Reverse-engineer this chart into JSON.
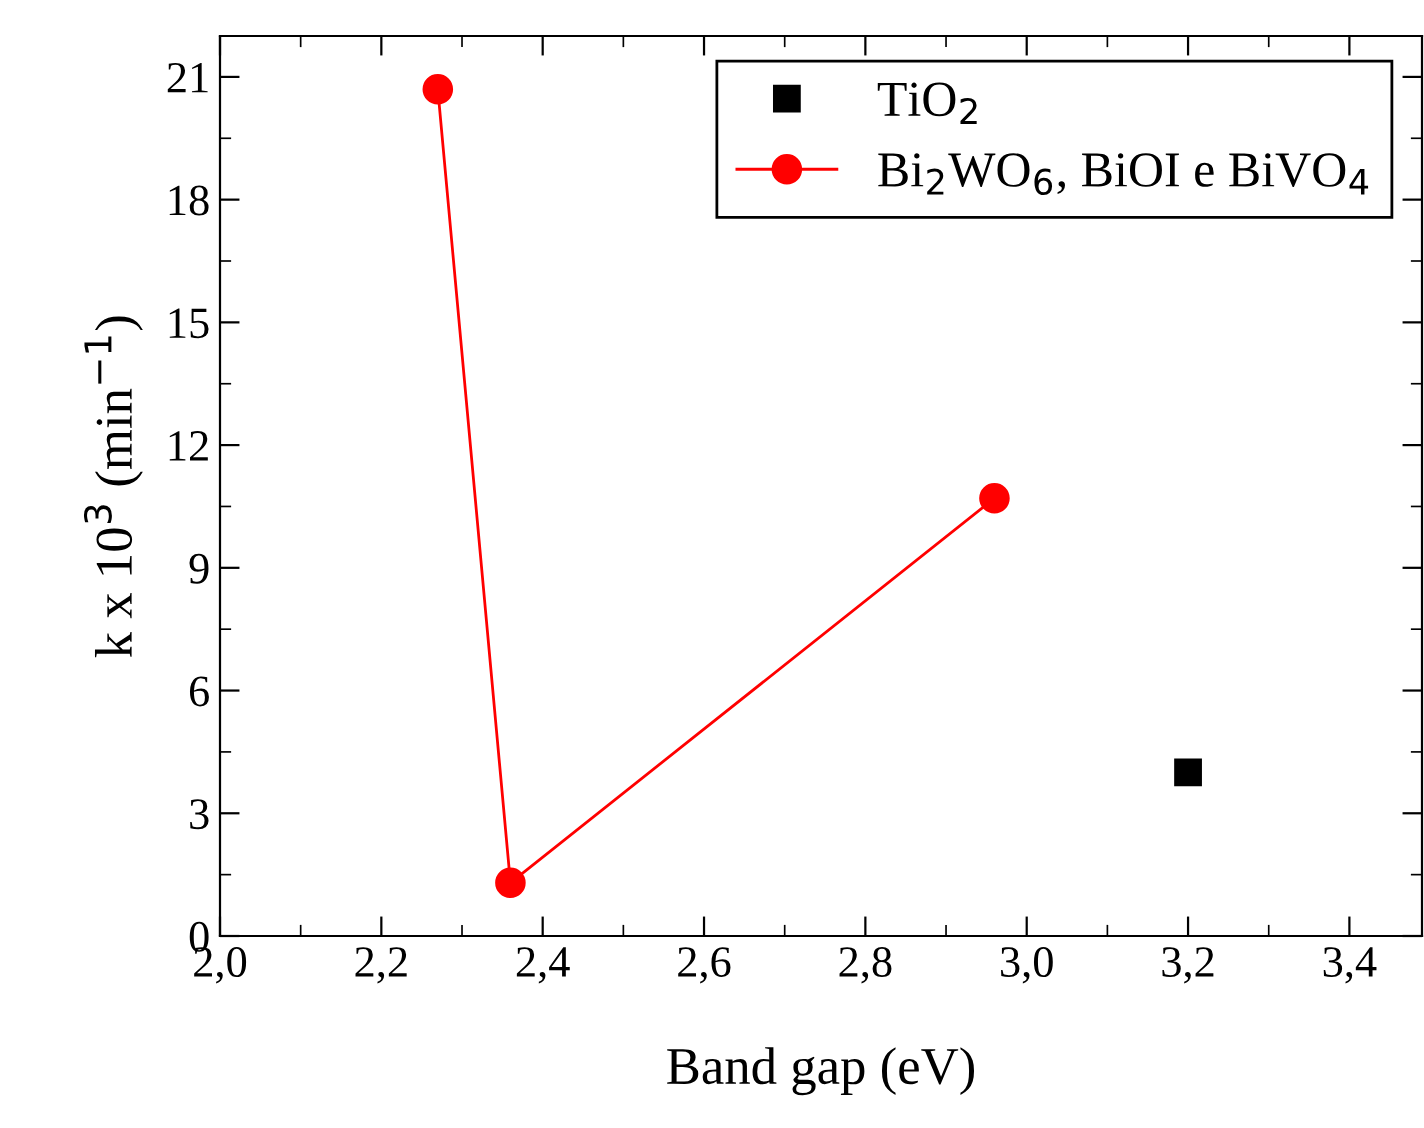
{
  "chart_data": {
    "type": "scatter",
    "xlabel": "Band gap (eV)",
    "ylabel": "k x 10$^{3}$ (min$^{−1}$)",
    "xlim": [
      2.0,
      3.49
    ],
    "ylim": [
      0,
      22
    ],
    "xticks": [
      {
        "value": 2.0,
        "label": "2,0"
      },
      {
        "value": 2.2,
        "label": "2,2"
      },
      {
        "value": 2.4,
        "label": "2,4"
      },
      {
        "value": 2.6,
        "label": "2,6"
      },
      {
        "value": 2.8,
        "label": "2,8"
      },
      {
        "value": 3.0,
        "label": "3,0"
      },
      {
        "value": 3.2,
        "label": "3,2"
      },
      {
        "value": 3.4,
        "label": "3,4"
      }
    ],
    "yticks": [
      0,
      3,
      6,
      9,
      12,
      15,
      18,
      21
    ],
    "legend": "top right",
    "grid": false,
    "series": [
      {
        "name": "TiO$_{2}$",
        "color": "#000000",
        "marker": "square",
        "x": [
          3.2
        ],
        "values": [
          4.0
        ]
      },
      {
        "name": "Bi$_{2}$WO$_{6}$, BiOI e BiVO$_{4}$",
        "color": "#ff0000",
        "type": "line",
        "marker": "circle",
        "x": [
          2.27,
          2.36,
          2.96
        ],
        "values": [
          20.7,
          1.3,
          10.7
        ]
      }
    ]
  }
}
